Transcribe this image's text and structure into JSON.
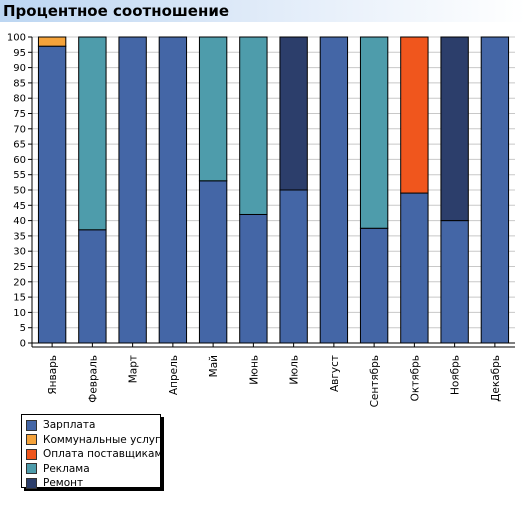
{
  "page": {
    "title": "Процентное соотношение"
  },
  "colors": {
    "series": [
      "#4466a6",
      "#f5a33b",
      "#f0561d",
      "#4e9cab",
      "#2c3e6b"
    ]
  },
  "chart_data": {
    "type": "bar",
    "stacked": true,
    "title": "Процентное соотношение",
    "xlabel": "",
    "ylabel": "",
    "ylim": [
      0,
      100
    ],
    "yticks": [
      0,
      5,
      10,
      15,
      20,
      25,
      30,
      35,
      40,
      45,
      50,
      55,
      60,
      65,
      70,
      75,
      80,
      85,
      90,
      95,
      100
    ],
    "grid": true,
    "legend_position": "bottom-left",
    "categories": [
      "Январь",
      "Февраль",
      "Март",
      "Апрель",
      "Май",
      "Июнь",
      "Июль",
      "Август",
      "Сентябрь",
      "Октябрь",
      "Ноябрь",
      "Декабрь"
    ],
    "series": [
      {
        "name": "Зарплата",
        "color": "#4466a6",
        "values": [
          97,
          37,
          100,
          100,
          53,
          42,
          50,
          100,
          37.5,
          49,
          40,
          100
        ]
      },
      {
        "name": "Коммунальные услуги",
        "color": "#f5a33b",
        "values": [
          3,
          0,
          0,
          0,
          0,
          0,
          0,
          0,
          0,
          0,
          0,
          0
        ]
      },
      {
        "name": "Оплата поставщикам",
        "color": "#f0561d",
        "values": [
          0,
          0,
          0,
          0,
          0,
          0,
          0,
          0,
          0,
          51,
          0,
          0
        ]
      },
      {
        "name": "Реклама",
        "color": "#4e9cab",
        "values": [
          0,
          63,
          0,
          0,
          47,
          58,
          0,
          0,
          62.5,
          0,
          0,
          0
        ]
      },
      {
        "name": "Ремонт",
        "color": "#2c3e6b",
        "values": [
          0,
          0,
          0,
          0,
          0,
          0,
          50,
          0,
          0,
          0,
          60,
          0
        ]
      }
    ]
  }
}
